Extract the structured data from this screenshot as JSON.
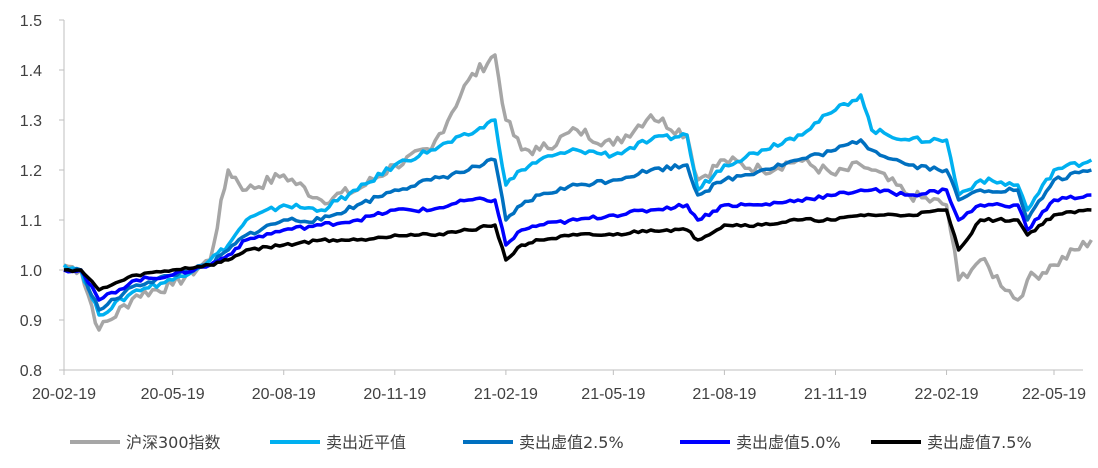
{
  "chart_data": {
    "type": "line",
    "title": "",
    "xlabel": "",
    "ylabel": "",
    "ylim": [
      0.8,
      1.5
    ],
    "yticks": [
      "0.8",
      "0.9",
      "1.0",
      "1.1",
      "1.2",
      "1.3",
      "1.4",
      "1.5"
    ],
    "xticks": [
      "20-02-19",
      "20-05-19",
      "20-08-19",
      "20-11-19",
      "21-02-19",
      "21-05-19",
      "21-08-19",
      "21-11-19",
      "22-02-19",
      "22-05-19"
    ],
    "grid": false,
    "legend_position": "bottom",
    "x": [
      "20-02-19",
      "20-03-04",
      "20-03-19",
      "20-04-19",
      "20-05-19",
      "20-06-19",
      "20-07-04",
      "20-07-19",
      "20-08-19",
      "20-09-19",
      "20-10-19",
      "20-11-19",
      "20-12-19",
      "21-01-19",
      "21-02-10",
      "21-02-19",
      "21-03-04",
      "21-03-19",
      "21-04-19",
      "21-05-19",
      "21-06-19",
      "21-07-19",
      "21-07-28",
      "21-08-19",
      "21-09-19",
      "21-10-19",
      "21-11-19",
      "21-12-10",
      "21-12-19",
      "22-01-19",
      "22-02-19",
      "22-03-01",
      "22-03-19",
      "22-04-19",
      "22-04-27",
      "22-05-19",
      "22-06-19"
    ],
    "series": [
      {
        "name": "沪深300指数",
        "color": "#a6a6a6",
        "values": [
          1.01,
          1.0,
          0.88,
          0.95,
          0.97,
          1.02,
          1.2,
          1.16,
          1.19,
          1.14,
          1.16,
          1.21,
          1.24,
          1.38,
          1.43,
          1.3,
          1.24,
          1.24,
          1.28,
          1.25,
          1.31,
          1.27,
          1.18,
          1.22,
          1.2,
          1.22,
          1.19,
          1.21,
          1.2,
          1.15,
          1.13,
          0.98,
          1.02,
          0.94,
          0.98,
          1.01,
          1.06
        ]
      },
      {
        "name": "卖出近平值",
        "color": "#00b0f0",
        "values": [
          1.01,
          1.0,
          0.91,
          0.96,
          0.98,
          1.02,
          1.05,
          1.1,
          1.13,
          1.12,
          1.16,
          1.21,
          1.24,
          1.27,
          1.3,
          1.17,
          1.2,
          1.22,
          1.24,
          1.23,
          1.26,
          1.27,
          1.16,
          1.21,
          1.24,
          1.27,
          1.32,
          1.35,
          1.28,
          1.26,
          1.26,
          1.15,
          1.18,
          1.17,
          1.12,
          1.2,
          1.22
        ]
      },
      {
        "name": "卖出虚值2.5%",
        "color": "#0070c0",
        "values": [
          1.0,
          1.0,
          0.92,
          0.97,
          0.99,
          1.01,
          1.04,
          1.07,
          1.1,
          1.1,
          1.13,
          1.16,
          1.18,
          1.2,
          1.22,
          1.1,
          1.13,
          1.15,
          1.17,
          1.18,
          1.2,
          1.21,
          1.15,
          1.18,
          1.2,
          1.22,
          1.24,
          1.26,
          1.24,
          1.21,
          1.2,
          1.14,
          1.16,
          1.16,
          1.1,
          1.18,
          1.2
        ]
      },
      {
        "name": "卖出虚值5.0%",
        "color": "#0000ff",
        "values": [
          1.0,
          1.0,
          0.94,
          0.98,
          0.99,
          1.01,
          1.03,
          1.06,
          1.08,
          1.09,
          1.1,
          1.12,
          1.12,
          1.14,
          1.14,
          1.05,
          1.08,
          1.09,
          1.1,
          1.11,
          1.12,
          1.13,
          1.1,
          1.13,
          1.13,
          1.14,
          1.15,
          1.16,
          1.16,
          1.15,
          1.16,
          1.1,
          1.13,
          1.13,
          1.08,
          1.14,
          1.15
        ]
      },
      {
        "name": "卖出虚值7.5%",
        "color": "#000000",
        "values": [
          1.0,
          1.0,
          0.96,
          0.99,
          1.0,
          1.01,
          1.02,
          1.04,
          1.05,
          1.06,
          1.06,
          1.07,
          1.07,
          1.08,
          1.09,
          1.02,
          1.05,
          1.06,
          1.07,
          1.07,
          1.08,
          1.08,
          1.06,
          1.09,
          1.09,
          1.1,
          1.1,
          1.11,
          1.11,
          1.11,
          1.12,
          1.04,
          1.1,
          1.1,
          1.07,
          1.11,
          1.12
        ]
      }
    ]
  }
}
